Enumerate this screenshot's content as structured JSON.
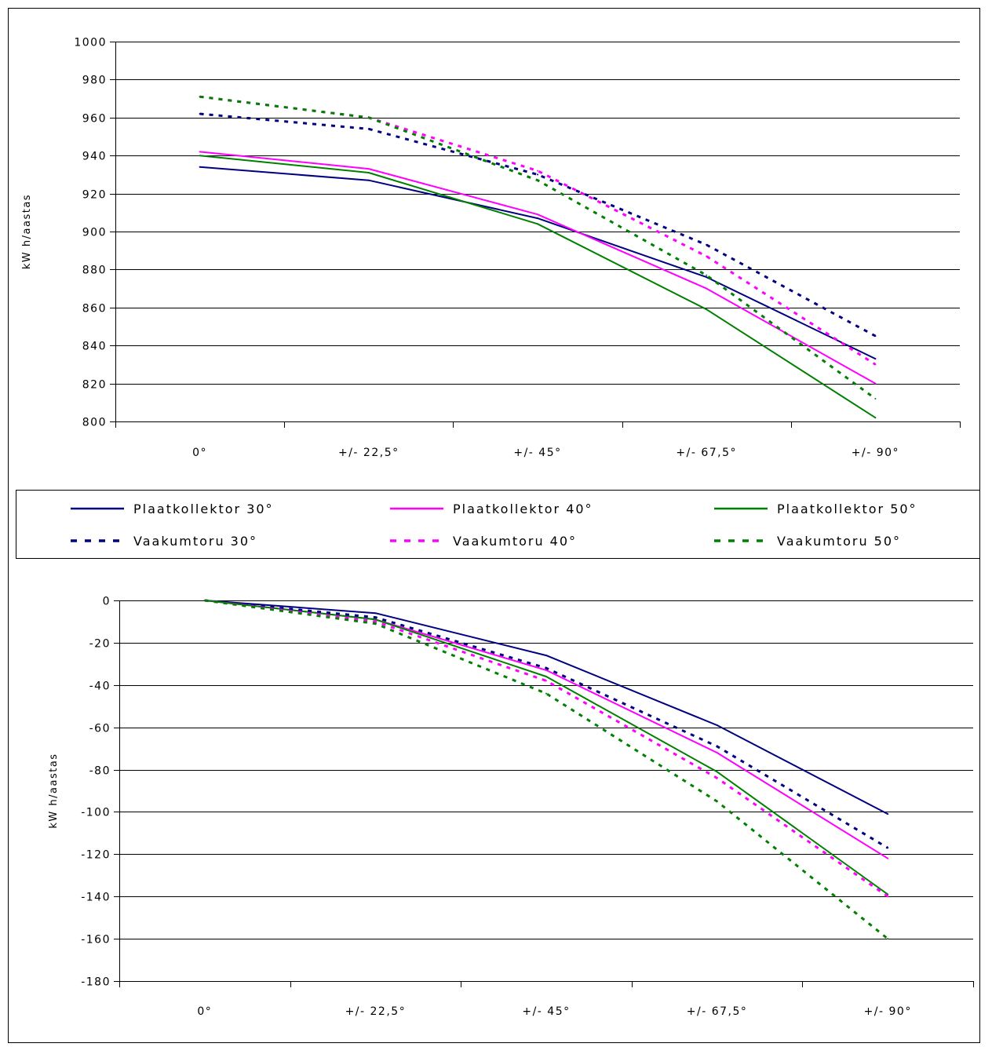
{
  "chart_data": [
    {
      "type": "line",
      "title": "",
      "xlabel": "",
      "ylabel": "kW h/aastas",
      "categories": [
        "0°",
        "+/- 22,5°",
        "+/- 45°",
        "+/- 67,5°",
        "+/- 90°"
      ],
      "ylim": [
        800,
        1000
      ],
      "yticks": [
        800,
        820,
        840,
        860,
        880,
        900,
        920,
        940,
        960,
        980,
        1000
      ],
      "grid": true,
      "series": [
        {
          "name": "Plaatkollektor 30°",
          "color": "#000080",
          "dash": "solid",
          "values": [
            934,
            927,
            907,
            876,
            833
          ]
        },
        {
          "name": "Plaatkollektor 40°",
          "color": "#ff00ff",
          "dash": "solid",
          "values": [
            942,
            933,
            909,
            870,
            820
          ]
        },
        {
          "name": "Plaatkollektor 50°",
          "color": "#008000",
          "dash": "solid",
          "values": [
            940,
            931,
            904,
            859,
            802
          ]
        },
        {
          "name": "Vaakumtoru 30°",
          "color": "#000080",
          "dash": "dashed",
          "values": [
            962,
            954,
            930,
            893,
            845
          ]
        },
        {
          "name": "Vaakumtoru 40°",
          "color": "#ff00ff",
          "dash": "dashed",
          "values": [
            971,
            960,
            932,
            887,
            830
          ]
        },
        {
          "name": "Vaakumtoru 50°",
          "color": "#008000",
          "dash": "dashed",
          "values": [
            971,
            960,
            927,
            877,
            812
          ]
        }
      ]
    },
    {
      "type": "line",
      "title": "",
      "xlabel": "",
      "ylabel": "kW h/aastas",
      "categories": [
        "0°",
        "+/- 22,5°",
        "+/- 45°",
        "+/- 67,5°",
        "+/- 90°"
      ],
      "ylim": [
        -180,
        0
      ],
      "yticks": [
        -180,
        -160,
        -140,
        -120,
        -100,
        -80,
        -60,
        -40,
        -20,
        0
      ],
      "grid": true,
      "series": [
        {
          "name": "Plaatkollektor 30°",
          "color": "#000080",
          "dash": "solid",
          "values": [
            0,
            -6,
            -26,
            -59,
            -101
          ]
        },
        {
          "name": "Plaatkollektor 40°",
          "color": "#ff00ff",
          "dash": "solid",
          "values": [
            0,
            -9,
            -33,
            -72,
            -122
          ]
        },
        {
          "name": "Plaatkollektor 50°",
          "color": "#008000",
          "dash": "solid",
          "values": [
            0,
            -9,
            -36,
            -81,
            -139
          ]
        },
        {
          "name": "Vaakumtoru 30°",
          "color": "#000080",
          "dash": "dashed",
          "values": [
            0,
            -8,
            -32,
            -69,
            -117
          ]
        },
        {
          "name": "Vaakumtoru 40°",
          "color": "#ff00ff",
          "dash": "dashed",
          "values": [
            0,
            -10,
            -38,
            -84,
            -140
          ]
        },
        {
          "name": "Vaakumtoru 50°",
          "color": "#008000",
          "dash": "dashed",
          "values": [
            0,
            -11,
            -44,
            -95,
            -160
          ]
        }
      ]
    }
  ],
  "legend": {
    "placement": "between-charts",
    "items": [
      {
        "label": "Plaatkollektor 30°",
        "color": "#000080",
        "dash": "solid"
      },
      {
        "label": "Plaatkollektor 40°",
        "color": "#ff00ff",
        "dash": "solid"
      },
      {
        "label": "Plaatkollektor 50°",
        "color": "#008000",
        "dash": "solid"
      },
      {
        "label": "Vaakumtoru 30°",
        "color": "#000080",
        "dash": "dashed"
      },
      {
        "label": "Vaakumtoru 40°",
        "color": "#ff00ff",
        "dash": "dashed"
      },
      {
        "label": "Vaakumtoru 50°",
        "color": "#008000",
        "dash": "dashed"
      }
    ]
  }
}
